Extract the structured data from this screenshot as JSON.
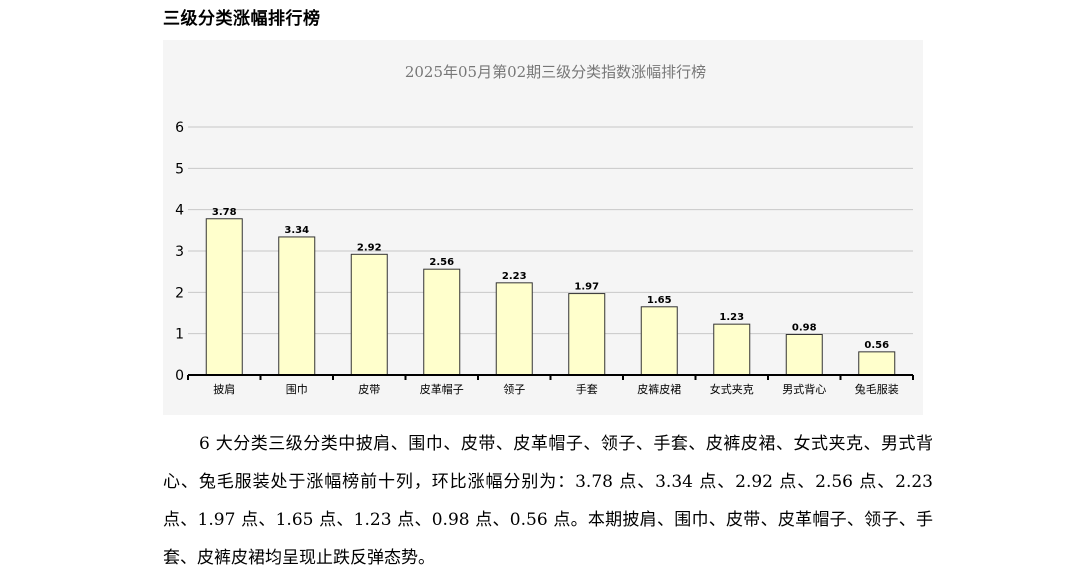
{
  "section_title": "三级分类涨幅排行榜",
  "chart_data": {
    "type": "bar",
    "title": "2025年05月第02期三级分类指数涨幅排行榜",
    "xlabel": "",
    "ylabel": "",
    "categories": [
      "披肩",
      "围巾",
      "皮带",
      "皮革帽子",
      "领子",
      "手套",
      "皮裤皮裙",
      "女式夹克",
      "男式背心",
      "兔毛服装"
    ],
    "values": [
      3.78,
      3.34,
      2.92,
      2.56,
      2.23,
      1.97,
      1.65,
      1.23,
      0.98,
      0.56
    ],
    "value_labels": [
      "3.78",
      "3.34",
      "2.92",
      "2.56",
      "2.23",
      "1.97",
      "1.65",
      "1.23",
      "0.98",
      "0.56"
    ],
    "ylim": [
      0,
      6
    ],
    "yticks": [
      "0",
      "1",
      "2",
      "3",
      "4",
      "5",
      "6"
    ],
    "grid": true,
    "legend": "none",
    "colors": {
      "bar_fill": "#ffffcc",
      "bar_stroke": "#333333",
      "grid": "#c8c8c8",
      "background": "#f5f5f5"
    }
  },
  "paragraph": "6 大分类三级分类中披肩、围巾、皮带、皮革帽子、领子、手套、皮裤皮裙、女式夹克、男式背心、兔毛服装处于涨幅榜前十列，环比涨幅分别为：3.78 点、3.34 点、2.92 点、2.56 点、2.23 点、1.97 点、1.65 点、1.23 点、0.98 点、0.56 点。本期披肩、围巾、皮带、皮革帽子、领子、手套、皮裤皮裙均呈现止跌反弹态势。"
}
